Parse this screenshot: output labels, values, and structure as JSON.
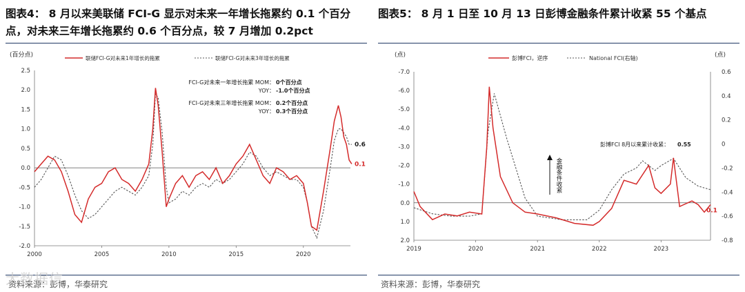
{
  "watermark": "大数据信",
  "charts": {
    "left": {
      "figure_title": "图表4：  8 月以来美联储 FCI-G 显示对未来一年增长拖累约 0.1 个百分点，对未来三年增长拖累约 0.6 个百分点，较 7 月增加 0.2pct",
      "source": "资料来源：彭博，华泰研究"
    },
    "right": {
      "figure_title": "图表5：  8 月 1 日至 10 月 13 日彭博金融条件累计收紧 55 个基点",
      "source": "资料来源：彭博，华泰研究"
    }
  },
  "chart_data": [
    {
      "type": "line",
      "ylabel": "(百分点)",
      "ylim": [
        -2.0,
        2.5
      ],
      "yticks": [
        "2.5",
        "2.0",
        "1.5",
        "1.0",
        "0.5",
        "0.0",
        "-0.5",
        "-1.0",
        "-1.5",
        "-2.0"
      ],
      "xlim": [
        2000,
        2023.5
      ],
      "xticks": [
        "2000",
        "2005",
        "2010",
        "2015",
        "2020"
      ],
      "grid": false,
      "legend_position": "top",
      "colors": {
        "one_year": "#d42a2a",
        "three_year": "#555555"
      },
      "series": [
        {
          "name": "联储FCI-G对未来1年增长的拖累",
          "style": "solid",
          "x": [
            2000,
            2000.5,
            2001,
            2001.5,
            2002,
            2002.5,
            2003,
            2003.5,
            2004,
            2004.5,
            2005,
            2005.5,
            2006,
            2006.5,
            2007,
            2007.5,
            2008,
            2008.5,
            2008.8,
            2009,
            2009.2,
            2009.5,
            2009.8,
            2010,
            2010.5,
            2011,
            2011.5,
            2012,
            2012.5,
            2013,
            2013.5,
            2014,
            2014.5,
            2015,
            2015.5,
            2016,
            2016.5,
            2017,
            2017.5,
            2018,
            2018.5,
            2019,
            2019.5,
            2020,
            2020.3,
            2020.6,
            2021,
            2021.5,
            2022,
            2022.3,
            2022.6,
            2022.8,
            2023,
            2023.2,
            2023.4,
            2023.6
          ],
          "values": [
            -0.1,
            0.1,
            0.3,
            0.2,
            -0.1,
            -0.6,
            -1.2,
            -1.4,
            -0.8,
            -0.5,
            -0.4,
            -0.1,
            0.0,
            -0.3,
            -0.4,
            -0.6,
            -0.3,
            0.1,
            1.0,
            2.05,
            1.6,
            0.4,
            -1.0,
            -0.8,
            -0.4,
            -0.2,
            -0.5,
            -0.2,
            -0.1,
            -0.3,
            0.0,
            -0.4,
            -0.2,
            0.1,
            0.3,
            0.6,
            0.2,
            -0.2,
            -0.4,
            0.0,
            -0.1,
            -0.3,
            -0.2,
            -0.4,
            -0.9,
            -1.5,
            -1.6,
            -0.6,
            0.5,
            1.2,
            1.6,
            1.3,
            0.8,
            0.6,
            0.2,
            0.1
          ]
        },
        {
          "name": "联储FCI-G对未来3年增长的拖累",
          "style": "dashed",
          "x": [
            2000,
            2000.5,
            2001,
            2001.5,
            2002,
            2002.5,
            2003,
            2003.5,
            2004,
            2004.5,
            2005,
            2005.5,
            2006,
            2006.5,
            2007,
            2007.5,
            2008,
            2008.5,
            2008.8,
            2009,
            2009.2,
            2009.5,
            2009.8,
            2010,
            2010.5,
            2011,
            2011.5,
            2012,
            2012.5,
            2013,
            2013.5,
            2014,
            2014.5,
            2015,
            2015.5,
            2016,
            2016.5,
            2017,
            2017.5,
            2018,
            2018.5,
            2019,
            2019.5,
            2020,
            2020.3,
            2020.6,
            2021,
            2021.5,
            2022,
            2022.3,
            2022.6,
            2022.8,
            2023,
            2023.2,
            2023.4,
            2023.6
          ],
          "values": [
            -0.5,
            -0.3,
            0.0,
            0.3,
            0.2,
            -0.2,
            -0.7,
            -1.1,
            -1.3,
            -1.2,
            -1.0,
            -0.8,
            -0.6,
            -0.5,
            -0.6,
            -0.7,
            -0.5,
            -0.2,
            0.6,
            1.9,
            1.8,
            0.9,
            -0.5,
            -0.9,
            -0.8,
            -0.6,
            -0.7,
            -0.5,
            -0.4,
            -0.5,
            -0.3,
            -0.4,
            -0.3,
            -0.1,
            0.1,
            0.4,
            0.3,
            0.0,
            -0.2,
            -0.1,
            -0.2,
            -0.3,
            -0.3,
            -0.5,
            -0.9,
            -1.5,
            -1.8,
            -1.1,
            0.0,
            0.7,
            1.0,
            1.0,
            0.9,
            0.8,
            0.6,
            0.6
          ]
        }
      ],
      "end_labels": [
        {
          "text": "0.6",
          "series": "three_year",
          "value": 0.6
        },
        {
          "text": "0.1",
          "series": "one_year",
          "value": 0.1
        }
      ],
      "annotations": [
        {
          "label": "FCI-G对未来一年增长拖累 MOM：",
          "value": "0个百分点"
        },
        {
          "label": "YOY：",
          "value": "-1.0个百分点"
        },
        {
          "label": "FCI-G对未来三年增长拖累 MOM：",
          "value": "0.2个百分点"
        },
        {
          "label": "YOY：",
          "value": "0.3个百分点"
        }
      ]
    },
    {
      "type": "line",
      "ylabel": "(点)",
      "ylabel_right": "(点)",
      "ylim": [
        -7.0,
        2.0
      ],
      "ylim_right": [
        0.6,
        -0.8
      ],
      "yticks": [
        "-7.0",
        "-6.0",
        "-5.0",
        "-4.0",
        "-3.0",
        "-2.0",
        "-1.0",
        "0.0",
        "1.0",
        "2.0"
      ],
      "yticks_right": [
        "0.6",
        "0.4",
        "0.2",
        "0",
        "-0.2",
        "-0.4",
        "-0.6",
        "-0.8"
      ],
      "xlim": [
        2019,
        2023.8
      ],
      "xticks": [
        "2019",
        "2020",
        "2021",
        "2022",
        "2023"
      ],
      "grid": false,
      "legend_position": "top",
      "colors": {
        "bloomberg_fci": "#d42a2a",
        "national_fci": "#555555"
      },
      "series": [
        {
          "name": "彭博FCI，逆序",
          "style": "solid",
          "axis": "left",
          "x": [
            2019,
            2019.1,
            2019.3,
            2019.5,
            2019.7,
            2019.9,
            2020.1,
            2020.18,
            2020.22,
            2020.28,
            2020.4,
            2020.6,
            2020.8,
            2021,
            2021.3,
            2021.6,
            2021.9,
            2022.0,
            2022.2,
            2022.4,
            2022.6,
            2022.8,
            2022.9,
            2023.0,
            2023.15,
            2023.2,
            2023.3,
            2023.5,
            2023.6,
            2023.7,
            2023.8
          ],
          "values": [
            -0.6,
            0.2,
            0.9,
            0.6,
            0.7,
            0.5,
            0.6,
            -3.0,
            -6.2,
            -4.0,
            -1.4,
            0.0,
            0.5,
            0.6,
            0.8,
            1.1,
            1.2,
            1.0,
            0.3,
            -1.2,
            -1.0,
            -2.0,
            -0.8,
            -0.5,
            -1.0,
            -2.4,
            0.2,
            -0.1,
            0.1,
            0.5,
            0.1
          ]
        },
        {
          "name": "National FCI(右轴)",
          "style": "dashed",
          "axis": "right",
          "x": [
            2019,
            2019.3,
            2019.6,
            2019.9,
            2020.1,
            2020.2,
            2020.3,
            2020.5,
            2020.8,
            2021,
            2021.4,
            2021.8,
            2022,
            2022.2,
            2022.4,
            2022.6,
            2022.7,
            2022.9,
            2023.0,
            2023.2,
            2023.4,
            2023.6,
            2023.8
          ],
          "values": [
            -0.53,
            -0.58,
            -0.6,
            -0.6,
            -0.58,
            0.1,
            0.42,
            0.05,
            -0.45,
            -0.6,
            -0.63,
            -0.63,
            -0.55,
            -0.38,
            -0.25,
            -0.2,
            -0.14,
            -0.22,
            -0.18,
            -0.12,
            -0.28,
            -0.35,
            -0.38
          ]
        }
      ],
      "arrow_label": "金融条件收紧",
      "annotation": {
        "label": "彭博FCI 8月以来累计收紧：",
        "value": "0.55"
      },
      "end_labels": [
        {
          "text": "0.1",
          "series": "bloomberg_fci",
          "value": 0.1
        }
      ]
    }
  ]
}
